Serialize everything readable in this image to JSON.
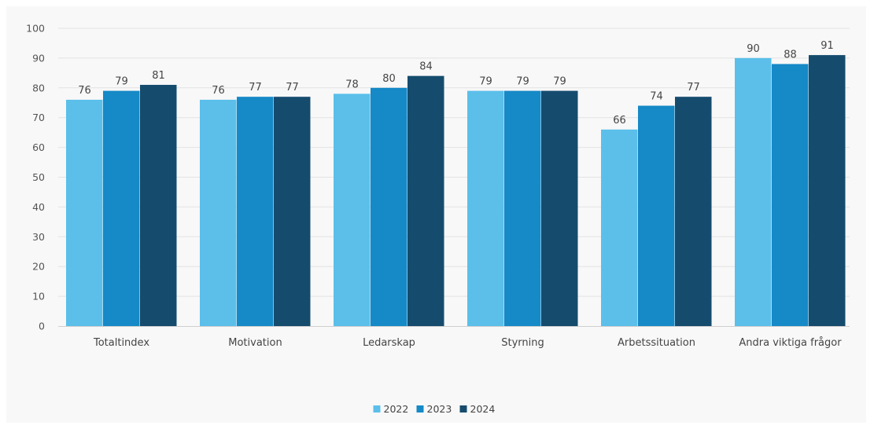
{
  "chart_data": {
    "type": "bar",
    "title": "",
    "xlabel": "",
    "ylabel": "",
    "categories": [
      "Totaltindex",
      "Motivation",
      "Ledarskap",
      "Styrning",
      "Arbetssituation",
      "Andra viktiga frågor"
    ],
    "series": [
      {
        "name": "2022",
        "color": "#5bbfea",
        "values": [
          76,
          76,
          78,
          79,
          66,
          90
        ]
      },
      {
        "name": "2023",
        "color": "#1689c7",
        "values": [
          79,
          77,
          80,
          79,
          74,
          88
        ]
      },
      {
        "name": "2024",
        "color": "#154c6e",
        "values": [
          81,
          77,
          84,
          79,
          77,
          91
        ]
      }
    ],
    "ylim": [
      0,
      100
    ],
    "yticks": [
      0,
      10,
      20,
      30,
      40,
      50,
      60,
      70,
      80,
      90,
      100
    ],
    "grid": true,
    "legend": "bottom-center",
    "data_labels": true
  }
}
